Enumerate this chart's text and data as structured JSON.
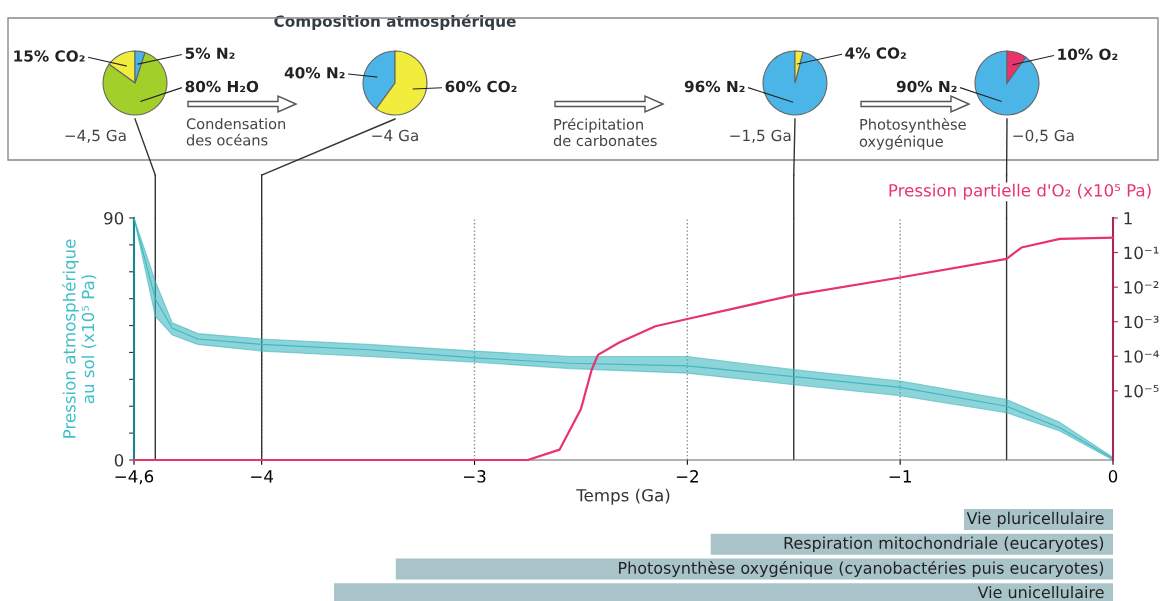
{
  "chart_data": [
    {
      "type": "pie",
      "categories": [
        "CO₂",
        "H₂O",
        "N₂"
      ],
      "values": [
        15,
        80,
        5
      ],
      "value_labels": [
        "15%",
        "80%",
        "5%"
      ],
      "colors": [
        "#f2ec3c",
        "#a3cf2a",
        "#4bb5e8"
      ],
      "xlabel": "−4,5 Ga",
      "annotations": [
        "Condensation\ndes océans"
      ]
    },
    {
      "type": "pie",
      "title": "Composition atmosphérique",
      "categories": [
        "N₂",
        "CO₂"
      ],
      "values": [
        40,
        60
      ],
      "value_labels": [
        "40%",
        "60%"
      ],
      "colors": [
        "#4bb5e8",
        "#f2ec3c"
      ],
      "xlabel": "−4 Ga",
      "annotations": [
        "Précipitation\nde carbonates"
      ]
    },
    {
      "type": "pie",
      "categories": [
        "N₂",
        "CO₂"
      ],
      "values": [
        96,
        4
      ],
      "value_labels": [
        "96%",
        "4%"
      ],
      "colors": [
        "#4bb5e8",
        "#f2ec3c"
      ],
      "xlabel": "−1,5 Ga",
      "annotations": [
        "Photosynthèse\noxygénique"
      ]
    },
    {
      "type": "pie",
      "categories": [
        "N₂",
        "O₂"
      ],
      "values": [
        90,
        10
      ],
      "value_labels": [
        "90%",
        "10%"
      ],
      "colors": [
        "#4bb5e8",
        "#e8336b"
      ],
      "xlabel": "−0,5 Ga"
    },
    {
      "type": "line",
      "xlabel": "Temps (Ga)",
      "ylabel": "Pression atmosphérique\nau sol (x10⁵ Pa)",
      "y2label": "Pression partielle d'O₂ (x10⁵ Pa)",
      "xlim": [
        -4.6,
        0
      ],
      "xticks": [
        {
          "value": -4.6,
          "label": "−4,6"
        },
        {
          "value": -4,
          "label": "−4"
        },
        {
          "value": -3,
          "label": "−3"
        },
        {
          "value": -2,
          "label": "−2"
        },
        {
          "value": -1,
          "label": "−1"
        },
        0
      ],
      "ylim": [
        0,
        90
      ],
      "yticks": [
        0,
        {
          "value": 10,
          "label": null
        },
        {
          "value": 20,
          "label": null
        },
        {
          "value": 30,
          "label": null
        },
        {
          "value": 40,
          "label": null
        },
        {
          "value": 50,
          "label": null
        },
        {
          "value": 60,
          "label": null
        },
        {
          "value": 70,
          "label": null
        },
        {
          "value": 80,
          "label": null
        },
        90
      ],
      "y2lim": [
        1e-07,
        1
      ],
      "y2ticks": [
        {
          "value": 1,
          "label": "1"
        },
        {
          "value": 0.1,
          "label": "10⁻¹"
        },
        {
          "value": 0.01,
          "label": "10⁻²"
        },
        {
          "value": 0.001,
          "label": "10⁻³"
        },
        {
          "value": 0.0001,
          "label": "10⁻⁴"
        },
        {
          "value": 1e-05,
          "label": "10⁻⁵"
        }
      ],
      "log": "y2",
      "grid": "x",
      "legend": false,
      "ref_lines": [
        {
          "axis": "x",
          "value": -4.5,
          "color": "#333333"
        },
        {
          "axis": "x",
          "value": -4,
          "color": "#333333"
        },
        {
          "axis": "x",
          "value": -1.5,
          "color": "#333333"
        },
        {
          "axis": "x",
          "value": -0.5,
          "color": "#333333"
        }
      ],
      "series": [
        {
          "type": "line",
          "color": "#3fb8c0",
          "x": [
            -4.6,
            -4.5,
            -4.42,
            -4.3,
            -4,
            -3.5,
            -3,
            -2.55,
            -2,
            -1.5,
            -1,
            -0.5,
            -0.25,
            0
          ],
          "values": [
            90,
            60,
            49,
            45,
            43,
            41,
            38,
            36,
            35,
            31,
            27,
            20,
            12,
            0.5
          ],
          "lower": [
            90,
            53.5,
            46.5,
            43,
            40.5,
            38.5,
            36.4,
            34,
            32.3,
            28,
            23.9,
            17.6,
            10.8,
            0
          ],
          "upper": [
            90,
            66.5,
            51,
            47,
            45,
            43,
            40.5,
            38.5,
            38.5,
            33.6,
            29.4,
            22.5,
            14,
            1
          ]
        },
        {
          "type": "line",
          "axis": "y2",
          "color": "#e8336b",
          "x": [
            -4.6,
            -2.75,
            -2.6,
            -2.5,
            -2.45,
            -2.42,
            -2.32,
            -2.15,
            -2,
            -1.5,
            -1,
            -0.5,
            -0.43,
            -0.25,
            0
          ],
          "values": [
            1e-07,
            1e-07,
            2e-07,
            3e-06,
            4e-05,
            0.00011,
            0.00025,
            0.00074,
            0.0012,
            0.0059,
            0.019,
            0.066,
            0.14,
            0.25,
            0.27
          ]
        }
      ]
    },
    {
      "type": "bar",
      "orientation": "horizontal",
      "categories": [
        "Vie pluricellulaire",
        "Respiration mitochondriale (eucaryotes)",
        "Photosynthèse oxygénique (cyanobactéries puis eucaryotes)",
        "Vie unicellulaire"
      ],
      "base": [
        -0.7,
        -1.89,
        -3.37,
        -3.66
      ],
      "values": [
        0.7,
        1.89,
        3.37,
        3.66
      ],
      "color": "#a9c4c9",
      "xlim": [
        -4.6,
        0
      ],
      "tick_labels": false
    }
  ]
}
